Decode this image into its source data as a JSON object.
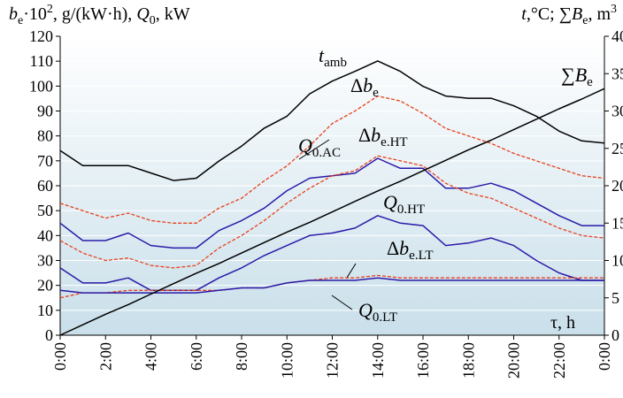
{
  "chart_data": {
    "type": "line",
    "left_axis_label": [
      [
        "b",
        "i"
      ],
      [
        "e",
        "sub"
      ],
      [
        "·10",
        ""
      ],
      [
        "2",
        "sup"
      ],
      [
        ", g/(kW·h), ",
        ""
      ],
      [
        "Q",
        "i"
      ],
      [
        "0",
        "sub"
      ],
      [
        ", kW",
        ""
      ]
    ],
    "right_axis_label": [
      [
        "t",
        "i"
      ],
      [
        ",°C; ∑",
        ""
      ],
      [
        "B",
        "i"
      ],
      [
        "e",
        "sub"
      ],
      [
        ", m",
        ""
      ],
      [
        "3",
        "sup"
      ]
    ],
    "x_axis_label": [
      [
        "τ, h",
        ""
      ]
    ],
    "x": [
      0,
      1,
      2,
      3,
      4,
      5,
      6,
      7,
      8,
      9,
      10,
      11,
      12,
      13,
      14,
      15,
      16,
      17,
      18,
      19,
      20,
      21,
      22,
      23,
      24
    ],
    "xlim": [
      0,
      24
    ],
    "xticks": [
      {
        "value": 0,
        "label": "0:00"
      },
      {
        "value": 2,
        "label": "2:00"
      },
      {
        "value": 4,
        "label": "4:00"
      },
      {
        "value": 6,
        "label": "6:00"
      },
      {
        "value": 8,
        "label": "8:00"
      },
      {
        "value": 10,
        "label": "10:00"
      },
      {
        "value": 12,
        "label": "12:00"
      },
      {
        "value": 14,
        "label": "14:00"
      },
      {
        "value": 16,
        "label": "16:00"
      },
      {
        "value": 18,
        "label": "18:00"
      },
      {
        "value": 20,
        "label": "20:00"
      },
      {
        "value": 22,
        "label": "22:00"
      },
      {
        "value": 24,
        "label": "0:00"
      }
    ],
    "ylim": [
      0,
      120
    ],
    "yticks": [
      0,
      10,
      20,
      30,
      40,
      50,
      60,
      70,
      80,
      90,
      100,
      110,
      120
    ],
    "y2lim": [
      0,
      40
    ],
    "y2ticks": [
      0,
      5,
      10,
      15,
      20,
      25,
      30,
      35,
      40
    ],
    "grid": true,
    "series": [
      {
        "label": [
          [
            "t",
            "i"
          ],
          [
            "amb",
            "sub"
          ]
        ],
        "color": "#000000",
        "dash": false,
        "axis": "y2",
        "values": [
          24.7,
          22.7,
          22.7,
          22.7,
          21.7,
          20.7,
          21,
          23.3,
          25.3,
          27.7,
          29.3,
          32.3,
          34,
          35.3,
          36.7,
          35.3,
          33.3,
          32,
          31.7,
          31.7,
          30.7,
          29.3,
          27.3,
          26,
          25.7
        ]
      },
      {
        "label": [
          [
            "Δ",
            ""
          ],
          [
            "b",
            "i"
          ],
          [
            "e",
            "sub"
          ]
        ],
        "color": "#e8401c",
        "dash": true,
        "values": [
          53,
          50,
          47,
          49,
          46,
          45,
          45,
          51,
          55,
          62,
          68,
          76,
          85,
          90,
          96,
          94,
          89,
          83,
          80,
          77,
          73,
          70,
          67,
          64,
          63
        ]
      },
      {
        "label": [
          [
            "Q",
            "i"
          ],
          [
            "0.AC",
            "sub"
          ]
        ],
        "color": "#2a1aa8",
        "dash": false,
        "values": [
          45,
          38,
          38,
          41,
          36,
          35,
          35,
          42,
          46,
          51,
          58,
          63,
          64,
          65,
          71,
          67,
          67,
          59,
          59,
          61,
          58,
          53,
          48,
          44,
          44
        ]
      },
      {
        "label": [
          [
            "Δ",
            ""
          ],
          [
            "b",
            "i"
          ],
          [
            "e.HT",
            "sub"
          ]
        ],
        "color": "#e8401c",
        "dash": true,
        "values": [
          38,
          33,
          30,
          31,
          28,
          27,
          28,
          35,
          40,
          46,
          53,
          59,
          64,
          66,
          72,
          70,
          68,
          61,
          57,
          55,
          51,
          47,
          43,
          40,
          39
        ]
      },
      {
        "label": [
          [
            "Q",
            "i"
          ],
          [
            "0.HT",
            "sub"
          ]
        ],
        "color": "#2a1aa8",
        "dash": false,
        "values": [
          27,
          21,
          21,
          23,
          18,
          18,
          18,
          23,
          27,
          32,
          36,
          40,
          41,
          43,
          48,
          45,
          44,
          36,
          37,
          39,
          36,
          30,
          25,
          22,
          22
        ]
      },
      {
        "label": [
          [
            "Δ",
            ""
          ],
          [
            "b",
            "i"
          ],
          [
            "e.LT",
            "sub"
          ]
        ],
        "color": "#e8401c",
        "dash": true,
        "values": [
          15,
          17,
          17,
          18,
          18,
          18,
          18,
          18,
          19,
          19,
          21,
          22,
          23,
          23,
          24,
          23,
          23,
          23,
          23,
          23,
          23,
          23,
          23,
          23,
          23
        ]
      },
      {
        "label": [
          [
            "Q",
            "i"
          ],
          [
            "0.LT",
            "sub"
          ]
        ],
        "color": "#2a1aa8",
        "dash": false,
        "values": [
          18,
          17,
          17,
          17,
          17,
          17,
          17,
          18,
          19,
          19,
          21,
          22,
          22,
          22,
          23,
          22,
          22,
          22,
          22,
          22,
          22,
          22,
          22,
          22,
          22
        ]
      },
      {
        "label": [
          [
            "∑",
            ""
          ],
          [
            "B",
            "i"
          ],
          [
            "e",
            "sub"
          ]
        ],
        "color": "#000000",
        "dash": false,
        "axis": "y2",
        "values": [
          0,
          1.4,
          2.8,
          4.1,
          5.5,
          6.9,
          8.3,
          9.6,
          11,
          12.4,
          13.8,
          15.1,
          16.5,
          17.9,
          19.3,
          20.6,
          22,
          23.4,
          24.8,
          26.1,
          27.5,
          28.9,
          30.3,
          31.6,
          33
        ]
      }
    ]
  }
}
